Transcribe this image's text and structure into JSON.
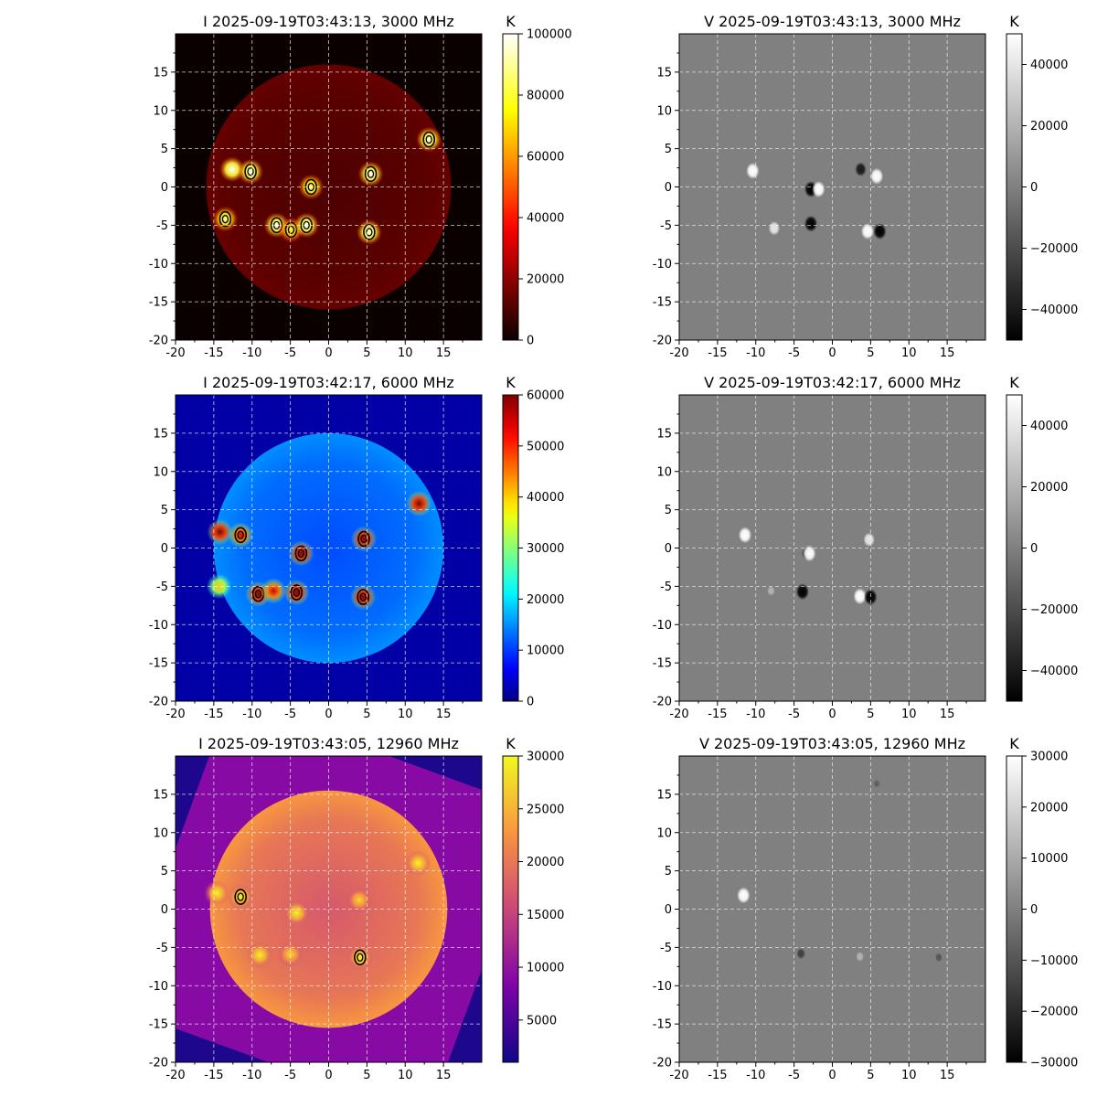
{
  "chart_data": [
    {
      "type": "heatmap",
      "panel": "top-left",
      "title": "I 2025-09-19T03:43:13, 3000 MHz",
      "colormap": "hot",
      "colorbar_unit": "K",
      "colorbar_range": [
        0,
        100000
      ],
      "colorbar_ticks": [
        "100000",
        "80000",
        "60000",
        "40000",
        "20000",
        "0"
      ],
      "xlim": [
        -20,
        20
      ],
      "ylim": [
        -20,
        20
      ],
      "xticks": [
        "-20",
        "-15",
        "-10",
        "-5",
        "0",
        "5",
        "10",
        "15"
      ],
      "yticks": [
        "15",
        "10",
        "5",
        "0",
        "-5",
        "-10",
        "-15",
        "-20"
      ],
      "grid": true,
      "disk_radius": 16,
      "background": 0,
      "disk_level": 12000,
      "sources": [
        {
          "x": -12.6,
          "y": 2.3,
          "peak": 100000,
          "contour": false
        },
        {
          "x": -10.2,
          "y": 2.0,
          "peak": 100000,
          "contour": true
        },
        {
          "x": -13.5,
          "y": -4.2,
          "peak": 90000,
          "contour": true
        },
        {
          "x": -6.8,
          "y": -5.0,
          "peak": 100000,
          "contour": true
        },
        {
          "x": -4.9,
          "y": -5.6,
          "peak": 80000,
          "contour": true
        },
        {
          "x": -2.9,
          "y": -5.0,
          "peak": 100000,
          "contour": true
        },
        {
          "x": -2.3,
          "y": 0.0,
          "peak": 90000,
          "contour": true
        },
        {
          "x": 5.5,
          "y": 1.7,
          "peak": 100000,
          "contour": true
        },
        {
          "x": 5.3,
          "y": -5.9,
          "peak": 100000,
          "contour": true
        },
        {
          "x": 13.1,
          "y": 6.2,
          "peak": 100000,
          "contour": true
        }
      ]
    },
    {
      "type": "heatmap",
      "panel": "top-right",
      "title": "V 2025-09-19T03:43:13, 3000 MHz",
      "colormap": "gray",
      "colorbar_unit": "K",
      "colorbar_range": [
        -50000,
        50000
      ],
      "colorbar_ticks": [
        "40000",
        "20000",
        "0",
        "−20000",
        "−40000"
      ],
      "xlim": [
        -20,
        20
      ],
      "ylim": [
        -20,
        20
      ],
      "xticks": [
        "-20",
        "-15",
        "-10",
        "-5",
        "0",
        "5",
        "10",
        "15"
      ],
      "yticks": [
        "15",
        "10",
        "5",
        "0",
        "-5",
        "-10",
        "-15",
        "-20"
      ],
      "grid": true,
      "background": 0,
      "sources": [
        {
          "x": -10.4,
          "y": 2.1,
          "value": 50000
        },
        {
          "x": -2.8,
          "y": -0.3,
          "value": -50000
        },
        {
          "x": -1.8,
          "y": -0.3,
          "value": 50000
        },
        {
          "x": 3.7,
          "y": 2.3,
          "value": -40000
        },
        {
          "x": 5.8,
          "y": 1.4,
          "value": 50000
        },
        {
          "x": -7.6,
          "y": -5.4,
          "value": 40000
        },
        {
          "x": -2.8,
          "y": -4.8,
          "value": -50000
        },
        {
          "x": 4.6,
          "y": -5.8,
          "value": 50000
        },
        {
          "x": 6.2,
          "y": -5.8,
          "value": -50000
        }
      ]
    },
    {
      "type": "heatmap",
      "panel": "middle-left",
      "title": "I 2025-09-19T03:42:17, 6000 MHz",
      "colormap": "jet",
      "colorbar_unit": "K",
      "colorbar_range": [
        0,
        60000
      ],
      "colorbar_ticks": [
        "60000",
        "50000",
        "40000",
        "30000",
        "20000",
        "10000",
        "0"
      ],
      "xlim": [
        -20,
        20
      ],
      "ylim": [
        -20,
        20
      ],
      "xticks": [
        "-20",
        "-15",
        "-10",
        "-5",
        "0",
        "5",
        "10",
        "15"
      ],
      "yticks": [
        "15",
        "10",
        "5",
        "0",
        "-5",
        "-10",
        "-15",
        "-20"
      ],
      "grid": true,
      "disk_radius": 15,
      "background": 2000,
      "disk_level": 13000,
      "sources": [
        {
          "x": -14.2,
          "y": 2.1,
          "peak": 60000,
          "contour": false
        },
        {
          "x": -11.5,
          "y": 1.7,
          "peak": 55000,
          "contour": true
        },
        {
          "x": -14.3,
          "y": -5.0,
          "peak": 40000,
          "contour": false
        },
        {
          "x": -9.2,
          "y": -6.0,
          "peak": 60000,
          "contour": true
        },
        {
          "x": -7.2,
          "y": -5.6,
          "peak": 55000,
          "contour": false
        },
        {
          "x": -4.2,
          "y": -5.8,
          "peak": 60000,
          "contour": true
        },
        {
          "x": -3.6,
          "y": -0.7,
          "peak": 60000,
          "contour": true
        },
        {
          "x": 4.6,
          "y": 1.2,
          "peak": 60000,
          "contour": true
        },
        {
          "x": 4.5,
          "y": -6.4,
          "peak": 60000,
          "contour": true
        },
        {
          "x": 11.8,
          "y": 5.8,
          "peak": 60000,
          "contour": false
        }
      ]
    },
    {
      "type": "heatmap",
      "panel": "middle-right",
      "title": "V 2025-09-19T03:42:17, 6000 MHz",
      "colormap": "gray",
      "colorbar_unit": "K",
      "colorbar_range": [
        -50000,
        50000
      ],
      "colorbar_ticks": [
        "40000",
        "20000",
        "0",
        "−20000",
        "−40000"
      ],
      "xlim": [
        -20,
        20
      ],
      "ylim": [
        -20,
        20
      ],
      "xticks": [
        "-20",
        "-15",
        "-10",
        "-5",
        "0",
        "5",
        "10",
        "15"
      ],
      "yticks": [
        "15",
        "10",
        "5",
        "0",
        "-5",
        "-10",
        "-15",
        "-20"
      ],
      "grid": true,
      "background": 0,
      "sources": [
        {
          "x": -11.4,
          "y": 1.7,
          "value": 50000
        },
        {
          "x": -3.4,
          "y": -0.7,
          "value": -30000
        },
        {
          "x": -3.0,
          "y": -0.7,
          "value": 50000
        },
        {
          "x": 4.8,
          "y": 1.1,
          "value": 40000
        },
        {
          "x": -8.0,
          "y": -5.6,
          "value": 20000
        },
        {
          "x": -3.9,
          "y": -5.7,
          "value": -50000
        },
        {
          "x": 3.6,
          "y": -6.3,
          "value": 50000
        },
        {
          "x": 5.0,
          "y": -6.4,
          "value": -50000
        }
      ]
    },
    {
      "type": "heatmap",
      "panel": "bottom-left",
      "title": "I 2025-09-19T03:43:05, 12960 MHz",
      "colormap": "plasma",
      "colorbar_unit": "K",
      "colorbar_range": [
        1000,
        30000
      ],
      "colorbar_ticks": [
        "30000",
        "25000",
        "20000",
        "15000",
        "10000",
        "5000"
      ],
      "xlim": [
        -20,
        20
      ],
      "ylim": [
        -20,
        20
      ],
      "xticks": [
        "-20",
        "-15",
        "-10",
        "-5",
        "0",
        "5",
        "10",
        "15"
      ],
      "yticks": [
        "15",
        "10",
        "5",
        "0",
        "-5",
        "-10",
        "-15",
        "-20"
      ],
      "grid": true,
      "disk_radius": 15.5,
      "background": 2000,
      "field_level": 9000,
      "field_rotation_deg": 20,
      "disk_level": 20000,
      "sources": [
        {
          "x": -14.6,
          "y": 2.1,
          "peak": 30000,
          "contour": false
        },
        {
          "x": -11.5,
          "y": 1.6,
          "peak": 30000,
          "contour": true
        },
        {
          "x": -9.0,
          "y": -6.0,
          "peak": 30000,
          "contour": false
        },
        {
          "x": -5.0,
          "y": -5.9,
          "peak": 28000,
          "contour": false
        },
        {
          "x": -4.2,
          "y": -0.5,
          "peak": 30000,
          "contour": false
        },
        {
          "x": 4.0,
          "y": 1.2,
          "peak": 28000,
          "contour": false
        },
        {
          "x": 4.1,
          "y": -6.3,
          "peak": 30000,
          "contour": true
        },
        {
          "x": 11.7,
          "y": 6.0,
          "peak": 30000,
          "contour": false
        }
      ]
    },
    {
      "type": "heatmap",
      "panel": "bottom-right",
      "title": "V 2025-09-19T03:43:05, 12960 MHz",
      "colormap": "gray",
      "colorbar_unit": "K",
      "colorbar_range": [
        -30000,
        30000
      ],
      "colorbar_ticks": [
        "30000",
        "20000",
        "10000",
        "0",
        "−10000",
        "−20000",
        "−30000"
      ],
      "xlim": [
        -20,
        20
      ],
      "ylim": [
        -20,
        20
      ],
      "xticks": [
        "-20",
        "-15",
        "-10",
        "-5",
        "0",
        "5",
        "10",
        "15"
      ],
      "yticks": [
        "15",
        "10",
        "5",
        "0",
        "-5",
        "-10",
        "-15",
        "-20"
      ],
      "grid": true,
      "background": 0,
      "sources": [
        {
          "x": -11.6,
          "y": 1.8,
          "value": 30000
        },
        {
          "x": -4.1,
          "y": -5.8,
          "value": -15000
        },
        {
          "x": 3.6,
          "y": -6.2,
          "value": 12000
        },
        {
          "x": 13.9,
          "y": -6.3,
          "value": -10000
        },
        {
          "x": 5.8,
          "y": 16.4,
          "value": -8000
        }
      ]
    }
  ]
}
